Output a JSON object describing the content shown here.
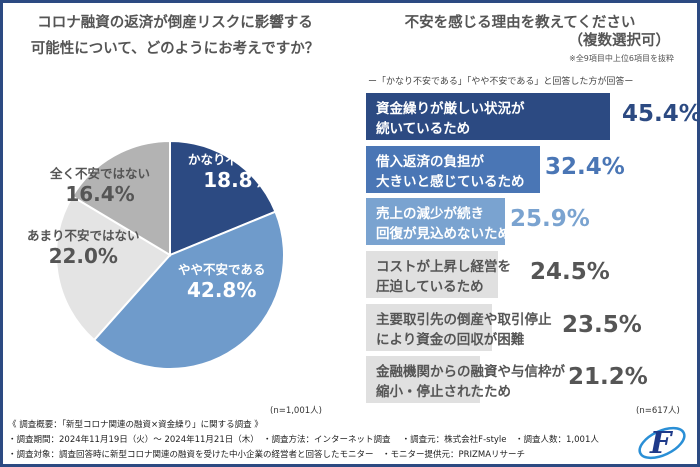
{
  "left_title": [
    "コロナ融資の返済が倒産リスクに影響する",
    "可能性について、どのようにお考えですか？"
  ],
  "right_title": "不安を感じる理由を教えてください",
  "right_subtitle": "（複数選択可）",
  "right_note": "※全9項目中上位6項目を抜粋",
  "right_caption": "ー「かなり不安である」「やや不安である」と回答した方が回答ー",
  "chart_data": [
    {
      "type": "pie",
      "n_label": "(n=1,001人)",
      "slices": [
        {
          "label": "かなり不安である",
          "value": 18.8,
          "display": "18.8%",
          "color": "#2c4a82"
        },
        {
          "label": "やや不安である",
          "value": 42.8,
          "display": "42.8%",
          "color": "#6f9bcb"
        },
        {
          "label": "あまり不安ではない",
          "value": 22.0,
          "display": "22.0%",
          "color": "#e4e4e4"
        },
        {
          "label": "全く不安ではない",
          "value": 16.4,
          "display": "16.4%",
          "color": "#b3b3b3"
        }
      ]
    },
    {
      "type": "bar",
      "orientation": "horizontal",
      "n_label": "(n=617人)",
      "bars": [
        {
          "label": [
            "資金繰りが厳しい状況が",
            "続いているため"
          ],
          "value": 45.4,
          "display": "45.4%",
          "color": "#2c4a82"
        },
        {
          "label": [
            "借入返済の負担が",
            "大きいと感じているため"
          ],
          "value": 32.4,
          "display": "32.4%",
          "color": "#4a76b5"
        },
        {
          "label": [
            "売上の減少が続き",
            "回復が見込めないため"
          ],
          "value": 25.9,
          "display": "25.9%",
          "color": "#7aa3d0"
        },
        {
          "label": [
            "コストが上昇し経営を",
            "圧迫しているため"
          ],
          "value": 24.5,
          "display": "24.5%",
          "color": "#e0e0e0"
        },
        {
          "label": [
            "主要取引先の倒産や取引停止",
            "により資金の回収が困難"
          ],
          "value": 23.5,
          "display": "23.5%",
          "color": "#e0e0e0"
        },
        {
          "label": [
            "金融機関からの融資や与信枠が",
            "縮小・停止されたため"
          ],
          "value": 21.2,
          "display": "21.2%",
          "color": "#e0e0e0"
        }
      ]
    }
  ],
  "footer": [
    "《 調査概要：「新型コロナ関連の融資×資金繰り」に関する調査 》",
    "・調査期間：2024年11月19日（火）～ 2024年11月21日（木）　・調査方法：インターネット調査　 ・調査元：株式会社F-style　・調査人数：1,001人",
    "・調査対象：調査回答時に新型コロナ関連の融資を受けた中小企業の経営者と回答したモニター　・モニター提供元：PRIZMAリサーチ"
  ],
  "logo_text": "F-style"
}
